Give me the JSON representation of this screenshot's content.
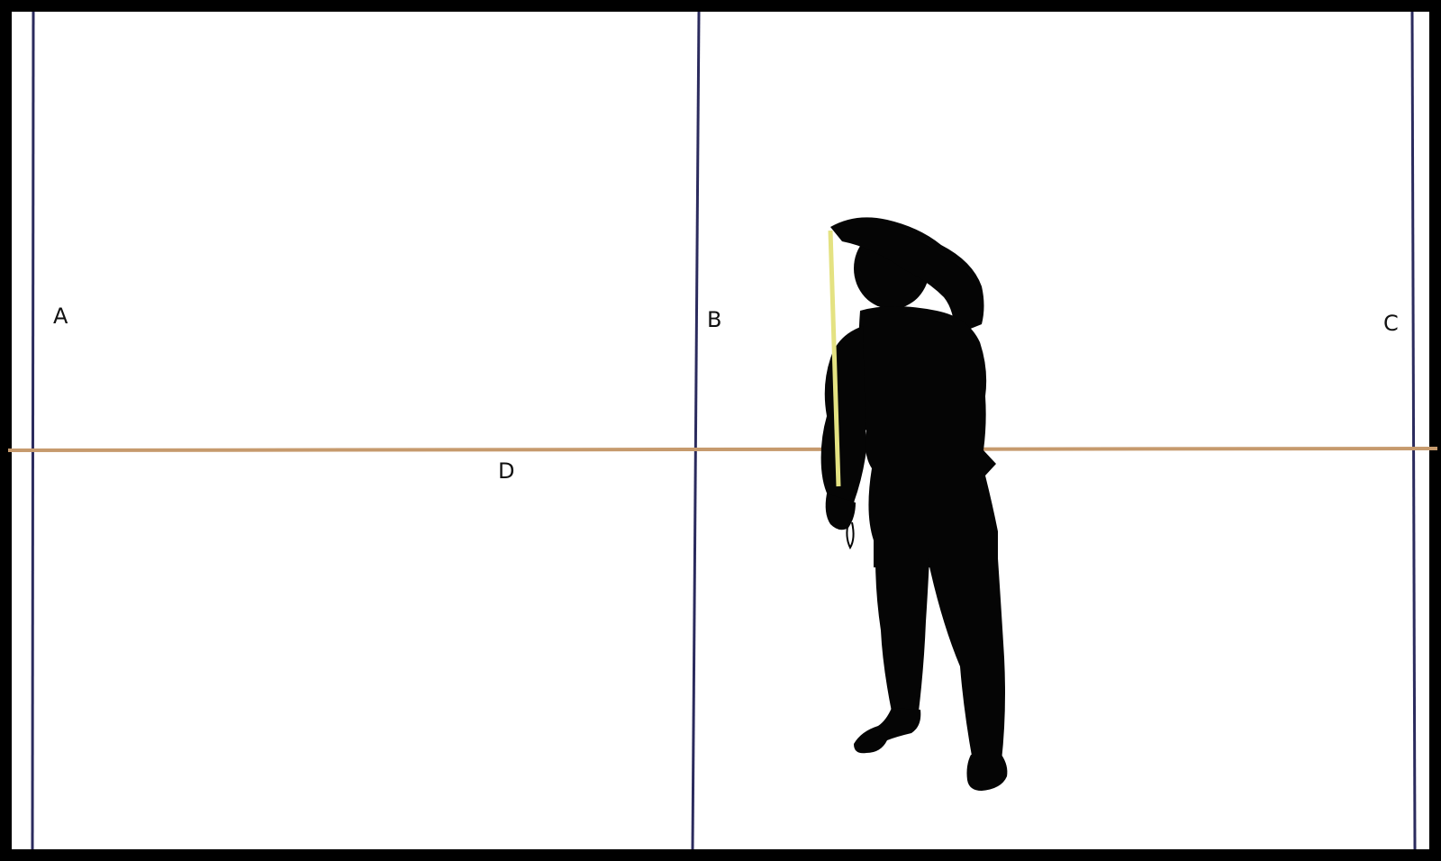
{
  "labels": {
    "a": "A",
    "b": "B",
    "c": "C",
    "d": "D"
  },
  "colors": {
    "frame": "#000000",
    "vertical_lines": "#2b2b5e",
    "horizontal_line": "#c69a6d",
    "tape": "#e4e282",
    "figure": "#050505",
    "background": "#ffffff"
  },
  "icons": {
    "figure": "person-measuring-silhouette-icon"
  }
}
